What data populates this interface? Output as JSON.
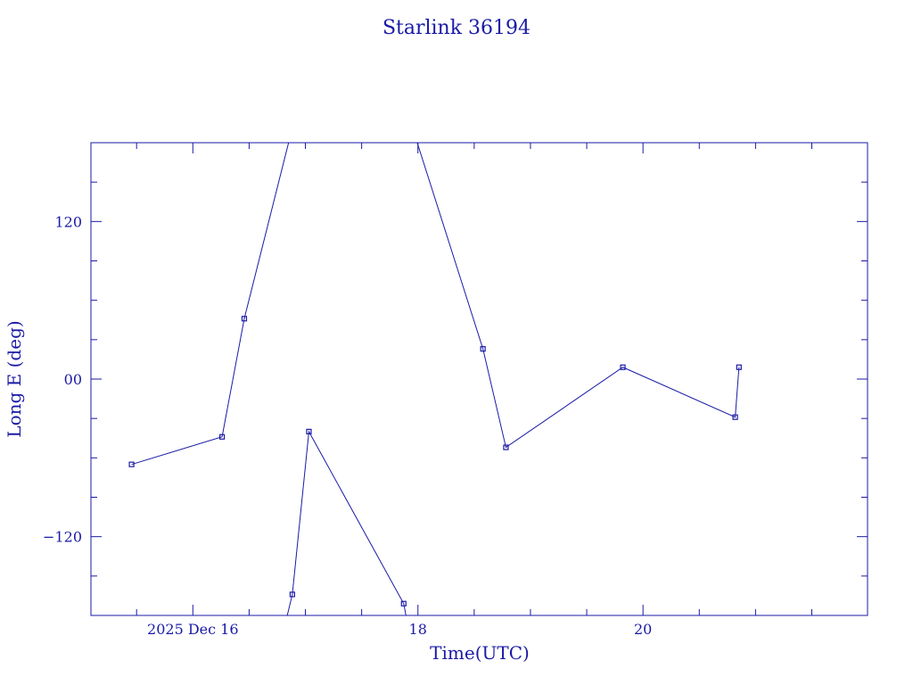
{
  "chart_data": {
    "type": "line",
    "title": "Starlink 36194",
    "xlabel": "Time(UTC)",
    "ylabel": "Long E (deg)",
    "x_unit": "hours, 2025 Dec",
    "xlim": [
      "2025-12-15 02:16",
      "2025-12-21 23:53"
    ],
    "ylim": [
      -180,
      180
    ],
    "x_ticks": [
      {
        "t": "2025-12-16 00:00",
        "label": "2025 Dec 16"
      },
      {
        "t": "2025-12-18 00:00",
        "label": "18"
      },
      {
        "t": "2025-12-20 00:00",
        "label": "20"
      }
    ],
    "y_ticks": [
      {
        "v": 120,
        "label": "120"
      },
      {
        "v": 0,
        "label": "00"
      },
      {
        "v": -120,
        "label": "−120"
      }
    ],
    "grid": false,
    "color": "#1a1aa6",
    "series": [
      {
        "points": [
          [
            "2025-12-15 10:56",
            -65
          ],
          [
            "2025-12-16 06:14",
            -44
          ],
          [
            "2025-12-16 10:58",
            46
          ],
          [
            "2025-12-16 20:25",
            180
          ]
        ]
      },
      {
        "points": [
          [
            "2025-12-16 20:08",
            -180
          ],
          [
            "2025-12-16 21:13",
            -164
          ],
          [
            "2025-12-17 00:45",
            -40
          ],
          [
            "2025-12-17 20:58",
            -171
          ],
          [
            "2025-12-17 21:27",
            -180
          ]
        ]
      },
      {
        "points": [
          [
            "2025-12-17 23:51",
            180
          ],
          [
            "2025-12-18 13:52",
            23
          ],
          [
            "2025-12-18 18:46",
            -52
          ],
          [
            "2025-12-19 19:42",
            9
          ],
          [
            "2025-12-20 19:40",
            -29
          ],
          [
            "2025-12-20 20:28",
            9
          ]
        ]
      }
    ]
  }
}
